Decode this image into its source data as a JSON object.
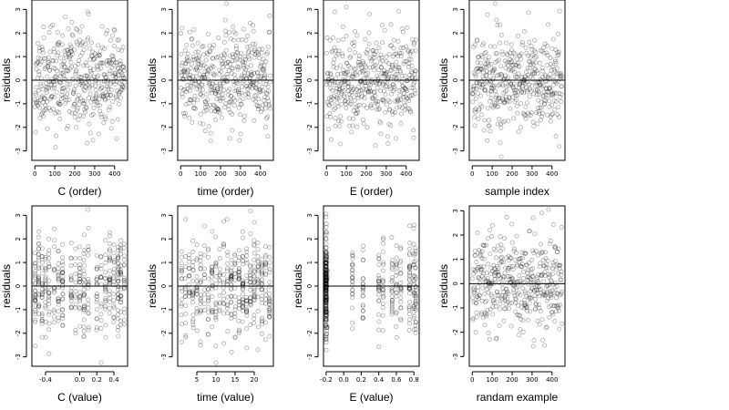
{
  "chart_data": [
    {
      "type": "scatter",
      "xlabel": "C (order)",
      "ylabel": "residuals",
      "xlim": [
        -15,
        465
      ],
      "ylim": [
        -3.4,
        3.4
      ],
      "xticks": [
        {
          "v": 0,
          "label": "0"
        },
        {
          "v": 100,
          "label": "100"
        },
        {
          "v": 200,
          "label": "200"
        },
        {
          "v": 300,
          "label": "300"
        },
        {
          "v": 400,
          "label": "400"
        }
      ],
      "yticks": [
        {
          "v": -3,
          "label": "-3"
        },
        {
          "v": -2,
          "label": "-2"
        },
        {
          "v": -1,
          "label": "-1"
        },
        {
          "v": 0,
          "label": "0"
        },
        {
          "v": 1,
          "label": "1"
        },
        {
          "v": 2,
          "label": "2"
        },
        {
          "v": 3,
          "label": "3"
        }
      ],
      "hline": 0,
      "pattern": "uniform",
      "x_min": 0,
      "x_max": 450,
      "n_points": 450,
      "seed": 11
    },
    {
      "type": "scatter",
      "xlabel": "time (order)",
      "ylabel": "residuals",
      "xlim": [
        -15,
        465
      ],
      "ylim": [
        -3.4,
        3.4
      ],
      "xticks": [
        {
          "v": 0,
          "label": "0"
        },
        {
          "v": 100,
          "label": "100"
        },
        {
          "v": 200,
          "label": "200"
        },
        {
          "v": 300,
          "label": "300"
        },
        {
          "v": 400,
          "label": "400"
        }
      ],
      "yticks": [
        {
          "v": -3,
          "label": "-3"
        },
        {
          "v": -2,
          "label": "-2"
        },
        {
          "v": -1,
          "label": "-1"
        },
        {
          "v": 0,
          "label": "0"
        },
        {
          "v": 1,
          "label": "1"
        },
        {
          "v": 2,
          "label": "2"
        },
        {
          "v": 3,
          "label": "3"
        }
      ],
      "hline": 0,
      "pattern": "uniform",
      "x_min": 0,
      "x_max": 450,
      "n_points": 450,
      "seed": 23
    },
    {
      "type": "scatter",
      "xlabel": "E (order)",
      "ylabel": "residuals",
      "xlim": [
        -15,
        465
      ],
      "ylim": [
        -3.4,
        3.4
      ],
      "xticks": [
        {
          "v": 0,
          "label": "0"
        },
        {
          "v": 100,
          "label": "100"
        },
        {
          "v": 200,
          "label": "200"
        },
        {
          "v": 300,
          "label": "300"
        },
        {
          "v": 400,
          "label": "400"
        }
      ],
      "yticks": [
        {
          "v": -3,
          "label": "-3"
        },
        {
          "v": -2,
          "label": "-2"
        },
        {
          "v": -1,
          "label": "-1"
        },
        {
          "v": 0,
          "label": "0"
        },
        {
          "v": 1,
          "label": "1"
        },
        {
          "v": 2,
          "label": "2"
        },
        {
          "v": 3,
          "label": "3"
        }
      ],
      "hline": 0,
      "pattern": "uniform",
      "x_min": 0,
      "x_max": 450,
      "n_points": 450,
      "seed": 37
    },
    {
      "type": "scatter",
      "xlabel": "sample index",
      "ylabel": "residuals",
      "xlim": [
        -15,
        465
      ],
      "ylim": [
        -3.4,
        3.4
      ],
      "xticks": [
        {
          "v": 0,
          "label": "0"
        },
        {
          "v": 100,
          "label": "100"
        },
        {
          "v": 200,
          "label": "200"
        },
        {
          "v": 300,
          "label": "300"
        },
        {
          "v": 400,
          "label": "400"
        }
      ],
      "yticks": [
        {
          "v": -3,
          "label": "-3"
        },
        {
          "v": -2,
          "label": "-2"
        },
        {
          "v": -1,
          "label": "-1"
        },
        {
          "v": 0,
          "label": "0"
        },
        {
          "v": 1,
          "label": "1"
        },
        {
          "v": 2,
          "label": "2"
        },
        {
          "v": 3,
          "label": "3"
        }
      ],
      "hline": 0,
      "pattern": "uniform",
      "x_min": 0,
      "x_max": 450,
      "n_points": 450,
      "seed": 41
    },
    {
      "type": "scatter",
      "xlabel": "C (value)",
      "ylabel": "residuals",
      "xlim": [
        -0.56,
        0.56
      ],
      "ylim": [
        -3.4,
        3.4
      ],
      "xticks": [
        {
          "v": -0.4,
          "label": "-0.4"
        },
        {
          "v": 0.0,
          "label": "0.0"
        },
        {
          "v": 0.2,
          "label": "0.2"
        },
        {
          "v": 0.4,
          "label": "0.4"
        }
      ],
      "yticks": [
        {
          "v": -3,
          "label": "-3"
        },
        {
          "v": -2,
          "label": "-2"
        },
        {
          "v": -1,
          "label": "-1"
        },
        {
          "v": 0,
          "label": "0"
        },
        {
          "v": 1,
          "label": "1"
        },
        {
          "v": 2,
          "label": "2"
        },
        {
          "v": 3,
          "label": "3"
        }
      ],
      "hline": 0,
      "pattern": "columns",
      "x_values": [
        -0.52,
        -0.48,
        -0.44,
        -0.4,
        -0.36,
        -0.3,
        -0.25,
        -0.2,
        -0.1,
        -0.05,
        0.0,
        0.05,
        0.1,
        0.2,
        0.25,
        0.3,
        0.35,
        0.4,
        0.45,
        0.48,
        0.52
      ],
      "n_points": 450,
      "seed": 53
    },
    {
      "type": "scatter",
      "xlabel": "time (value)",
      "ylabel": "residuals",
      "xlim": [
        0,
        25
      ],
      "ylim": [
        -3.4,
        3.4
      ],
      "xticks": [
        {
          "v": 5,
          "label": "5"
        },
        {
          "v": 10,
          "label": "10"
        },
        {
          "v": 15,
          "label": "15"
        },
        {
          "v": 20,
          "label": "20"
        }
      ],
      "yticks": [
        {
          "v": -3,
          "label": "-3"
        },
        {
          "v": -2,
          "label": "-2"
        },
        {
          "v": -1,
          "label": "-1"
        },
        {
          "v": 0,
          "label": "0"
        },
        {
          "v": 1,
          "label": "1"
        },
        {
          "v": 2,
          "label": "2"
        },
        {
          "v": 3,
          "label": "3"
        }
      ],
      "hline": 0,
      "pattern": "columns",
      "x_values": [
        1,
        2,
        3,
        4,
        5,
        6,
        7,
        8,
        9,
        10,
        11,
        12,
        13,
        14,
        15,
        16,
        17,
        18,
        19,
        20,
        21,
        22,
        23,
        24
      ],
      "n_points": 450,
      "seed": 67
    },
    {
      "type": "scatter",
      "xlabel": "E (value)",
      "ylabel": "residuals",
      "xlim": [
        -0.23,
        0.86
      ],
      "ylim": [
        -3.4,
        3.4
      ],
      "xticks": [
        {
          "v": -0.2,
          "label": "-0.2"
        },
        {
          "v": 0.0,
          "label": "0.0"
        },
        {
          "v": 0.2,
          "label": "0.2"
        },
        {
          "v": 0.4,
          "label": "0.4"
        },
        {
          "v": 0.6,
          "label": "0.6"
        },
        {
          "v": 0.8,
          "label": "0.8"
        }
      ],
      "yticks": [
        {
          "v": -3,
          "label": "-3"
        },
        {
          "v": -2,
          "label": "-2"
        },
        {
          "v": -1,
          "label": "-1"
        },
        {
          "v": 0,
          "label": "0"
        },
        {
          "v": 1,
          "label": "1"
        },
        {
          "v": 2,
          "label": "2"
        },
        {
          "v": 3,
          "label": "3"
        }
      ],
      "hline": 0,
      "pattern": "columns",
      "x_values": [
        -0.2,
        -0.2,
        -0.2,
        -0.2,
        -0.2,
        -0.2,
        -0.2,
        -0.2,
        -0.19,
        0.1,
        0.22,
        0.4,
        0.45,
        0.55,
        0.6,
        0.65,
        0.75,
        0.8,
        0.82
      ],
      "n_points": 450,
      "seed": 79
    },
    {
      "type": "scatter",
      "xlabel": "randam example",
      "ylabel": "residuals",
      "xlim": [
        -15,
        465
      ],
      "ylim": [
        -3.4,
        3.2
      ],
      "xticks": [
        {
          "v": 0,
          "label": "0"
        },
        {
          "v": 100,
          "label": "100"
        },
        {
          "v": 200,
          "label": "200"
        },
        {
          "v": 300,
          "label": "300"
        },
        {
          "v": 400,
          "label": "400"
        }
      ],
      "yticks": [
        {
          "v": -3,
          "label": "-3"
        },
        {
          "v": -2,
          "label": "-2"
        },
        {
          "v": -1,
          "label": "-1"
        },
        {
          "v": 0,
          "label": "0"
        },
        {
          "v": 1,
          "label": "1"
        },
        {
          "v": 2,
          "label": "2"
        },
        {
          "v": 3,
          "label": "3"
        }
      ],
      "hline": 0,
      "pattern": "uniform",
      "x_min": 0,
      "x_max": 450,
      "n_points": 450,
      "seed": 97
    }
  ]
}
